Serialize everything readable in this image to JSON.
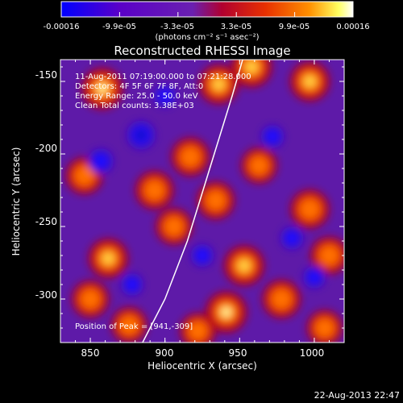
{
  "chart_data": {
    "type": "heatmap",
    "title": "Reconstructed RHESSI Image",
    "xlabel": "Heliocentric X (arcsec)",
    "ylabel": "Heliocentric Y (arcsec)",
    "xlim": [
      830,
      1020
    ],
    "ylim": [
      -330,
      -135
    ],
    "x_ticks": [
      850,
      900,
      950,
      1000
    ],
    "y_ticks": [
      -150,
      -200,
      -250,
      -300
    ],
    "colorbar": {
      "ticks": [
        "-0.00016",
        "-9.9e-05",
        "-3.3e-05",
        "3.3e-05",
        "9.9e-05",
        "0.00016"
      ],
      "unit_label": "(photons cm⁻² s⁻¹ asec⁻²)",
      "range": [
        -0.00016,
        0.00016
      ],
      "colors": [
        "#0000ff",
        "#6a00b8",
        "#7a1ad0",
        "#d21a00",
        "#ff7a00",
        "#ffffff"
      ]
    },
    "info_lines": [
      "11-Aug-2011 07:19:00.000 to 07:21:28.000",
      "Detectors: 4F 5F 6F 7F 8F, Att:0",
      "Energy Range: 25.0 - 50.0 keV",
      "Clean    Total counts: 3.38E+03"
    ],
    "peak_label": "Position of Peak = [941,-309]",
    "footer_date": "22-Aug-2013 22:47",
    "limb_curve": [
      [
        885,
        -330
      ],
      [
        900,
        -300
      ],
      [
        915,
        -260
      ],
      [
        930,
        -210
      ],
      [
        945,
        -160
      ],
      [
        952,
        -135
      ]
    ],
    "blobs": [
      {
        "x": 858,
        "y": -155,
        "v": 1.0
      },
      {
        "x": 846,
        "y": -215,
        "v": 0.65
      },
      {
        "x": 862,
        "y": -272,
        "v": 0.85
      },
      {
        "x": 850,
        "y": -300,
        "v": 0.65
      },
      {
        "x": 876,
        "y": -318,
        "v": 0.55
      },
      {
        "x": 893,
        "y": -225,
        "v": 0.75
      },
      {
        "x": 906,
        "y": -250,
        "v": 0.6
      },
      {
        "x": 917,
        "y": -202,
        "v": 0.75
      },
      {
        "x": 934,
        "y": -232,
        "v": 0.7
      },
      {
        "x": 936,
        "y": -152,
        "v": 0.85
      },
      {
        "x": 958,
        "y": -140,
        "v": 0.95
      },
      {
        "x": 963,
        "y": -208,
        "v": 0.55
      },
      {
        "x": 953,
        "y": -277,
        "v": 0.9
      },
      {
        "x": 941,
        "y": -309,
        "v": 1.0
      },
      {
        "x": 922,
        "y": -322,
        "v": 0.55
      },
      {
        "x": 978,
        "y": -300,
        "v": 0.75
      },
      {
        "x": 997,
        "y": -150,
        "v": 0.85
      },
      {
        "x": 997,
        "y": -238,
        "v": 0.8
      },
      {
        "x": 1010,
        "y": -270,
        "v": 0.7
      },
      {
        "x": 1007,
        "y": -320,
        "v": 0.55
      },
      {
        "x": 884,
        "y": -187,
        "v": -1.0
      },
      {
        "x": 857,
        "y": -205,
        "v": -0.7
      },
      {
        "x": 900,
        "y": -160,
        "v": -0.5
      },
      {
        "x": 925,
        "y": -270,
        "v": -0.5
      },
      {
        "x": 972,
        "y": -188,
        "v": -0.5
      },
      {
        "x": 985,
        "y": -258,
        "v": -0.5
      },
      {
        "x": 1000,
        "y": -285,
        "v": -0.45
      },
      {
        "x": 878,
        "y": -290,
        "v": -0.45
      }
    ]
  }
}
